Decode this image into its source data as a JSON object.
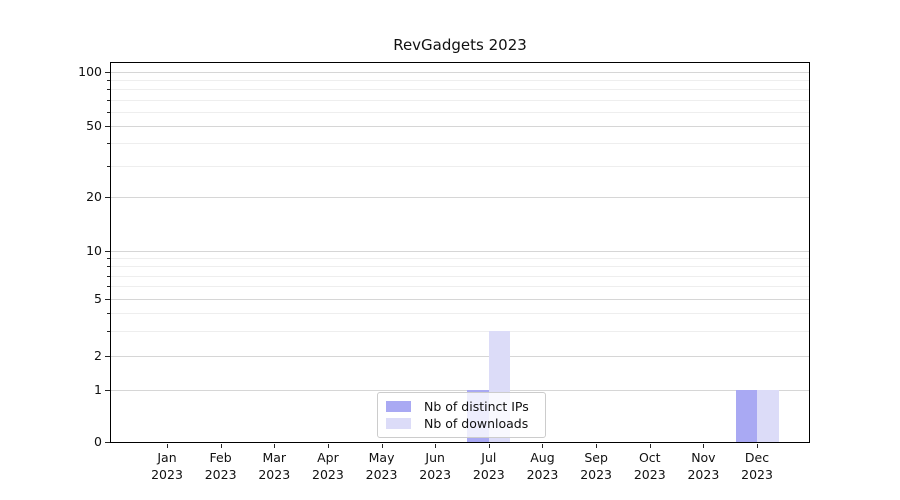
{
  "chart_data": {
    "type": "bar",
    "title": "RevGadgets 2023",
    "x_tick_months": [
      "Jan",
      "Feb",
      "Mar",
      "Apr",
      "May",
      "Jun",
      "Jul",
      "Aug",
      "Sep",
      "Oct",
      "Nov",
      "Dec"
    ],
    "x_tick_year": "2023",
    "series": [
      {
        "name": "Nb of distinct IPs",
        "color": "#a9a9f3",
        "values": [
          0,
          0,
          0,
          0,
          0,
          0,
          1,
          0,
          0,
          0,
          0,
          1
        ]
      },
      {
        "name": "Nb of downloads",
        "color": "#dcdcf8",
        "values": [
          0,
          0,
          0,
          0,
          0,
          0,
          3,
          0,
          0,
          0,
          0,
          1
        ]
      }
    ],
    "y_axis": {
      "scale": "symlog",
      "tick_values": [
        0,
        1,
        2,
        5,
        10,
        20,
        50,
        100
      ],
      "tick_labels": [
        "0",
        "1",
        "2",
        "5",
        "10",
        "20",
        "50",
        "100"
      ],
      "range": [
        0,
        112
      ]
    },
    "grid": {
      "horizontal": true,
      "minor": true
    },
    "legend_position": "lower center",
    "colors": {
      "major_grid": "#d6d6d6",
      "minor_grid": "#eeeeee",
      "spine": "#000000"
    }
  }
}
